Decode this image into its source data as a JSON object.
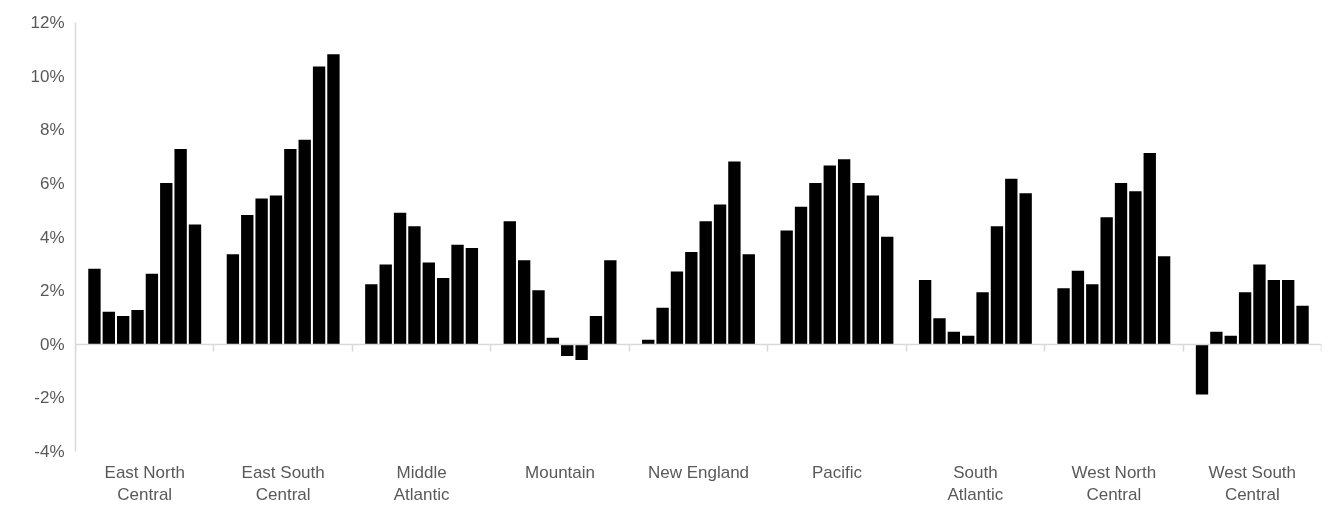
{
  "chart_data": {
    "type": "bar",
    "categories": [
      "East North Central",
      "East South Central",
      "Middle Atlantic",
      "Mountain",
      "New England",
      "Pacific",
      "South Atlantic",
      "West North Central",
      "West South Central"
    ],
    "series": [
      {
        "color": "#000000",
        "values": [
          2.82,
          3.36,
          2.24,
          4.59,
          0.17,
          4.24,
          2.4,
          2.09,
          -1.87
        ]
      },
      {
        "color": "#000000",
        "values": [
          1.21,
          4.82,
          2.97,
          3.13,
          1.36,
          5.13,
          0.97,
          2.74,
          0.47
        ]
      },
      {
        "color": "#000000",
        "values": [
          1.05,
          5.44,
          4.9,
          2.01,
          2.71,
          6.01,
          0.47,
          2.24,
          0.32
        ]
      },
      {
        "color": "#000000",
        "values": [
          1.28,
          5.55,
          4.4,
          0.24,
          3.44,
          6.67,
          0.32,
          4.74,
          1.94
        ]
      },
      {
        "color": "#000000",
        "values": [
          2.63,
          7.28,
          3.05,
          -0.44,
          4.59,
          6.9,
          1.94,
          6.01,
          2.97
        ]
      },
      {
        "color": "#000000",
        "values": [
          6.01,
          7.63,
          2.47,
          -0.59,
          5.21,
          6.01,
          4.4,
          5.71,
          2.4
        ]
      },
      {
        "color": "#000000",
        "values": [
          7.28,
          10.36,
          3.71,
          1.05,
          6.82,
          5.55,
          6.17,
          7.13,
          2.4
        ]
      },
      {
        "color": "#000000",
        "values": [
          4.47,
          10.82,
          3.59,
          3.13,
          3.36,
          4.01,
          5.63,
          3.28,
          1.44
        ]
      }
    ],
    "ylim": [
      -4,
      12
    ],
    "yticks": [
      {
        "value": -4,
        "label": "-4%"
      },
      {
        "value": -2,
        "label": "-2%"
      },
      {
        "value": 0,
        "label": "0%"
      },
      {
        "value": 2,
        "label": "2%"
      },
      {
        "value": 4,
        "label": "4%"
      },
      {
        "value": 6,
        "label": "6%"
      },
      {
        "value": 8,
        "label": "8%"
      },
      {
        "value": 10,
        "label": "10%"
      },
      {
        "value": 12,
        "label": "12%"
      }
    ],
    "stacked": false
  }
}
